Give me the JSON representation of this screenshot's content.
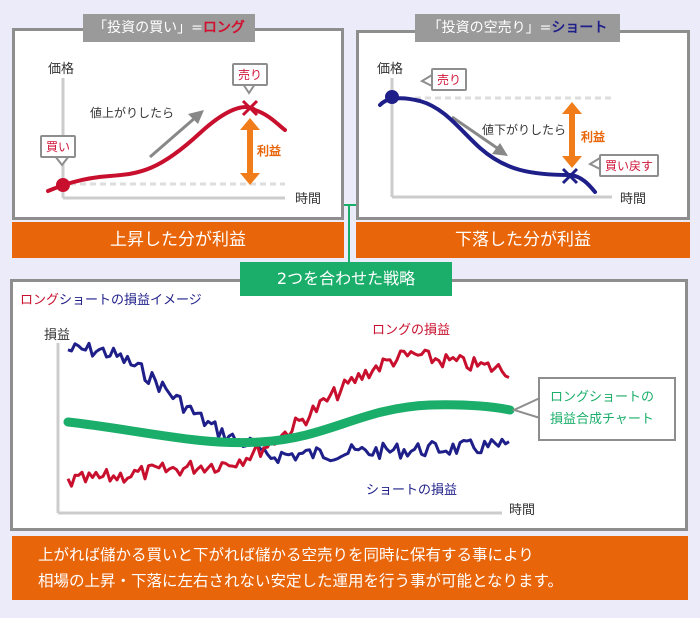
{
  "long_panel": {
    "tab_prefix": "「投資の買い」=",
    "tab_term": "ロング",
    "y_label": "価格",
    "x_label": "時間",
    "buy_label": "買い",
    "sell_label": "売り",
    "trend_label": "値上がりしたら",
    "profit_label": "利益",
    "summary": "上昇した分が利益"
  },
  "short_panel": {
    "tab_prefix": "「投資の空売り」=",
    "tab_term": "ショート",
    "y_label": "価格",
    "x_label": "時間",
    "sell_label": "売り",
    "buyback_label": "買い戻す",
    "trend_label": "値下がりしたら",
    "profit_label": "利益",
    "summary": "下落した分が利益"
  },
  "combined": {
    "label": "2つを合わせた戦略",
    "title_long": "ロング",
    "title_short": "ショート",
    "title_rest": "の損益イメージ",
    "y_label": "損益",
    "x_label": "時間",
    "long_series_label": "ロングの損益",
    "short_series_label": "ショートの損益",
    "composite_label_line1": "ロングショートの",
    "composite_label_line2": "損益合成チャート"
  },
  "footer": {
    "line1": "上がれば儲かる買いと下がれば儲かる空売りを同時に保有する事により",
    "line2": "相場の上昇・下落に左右されない安定した運用を行う事が可能となります。"
  },
  "colors": {
    "long": "#c8102e",
    "short": "#1f1f8a",
    "composite": "#1aae6a",
    "accent": "#e8650a"
  }
}
